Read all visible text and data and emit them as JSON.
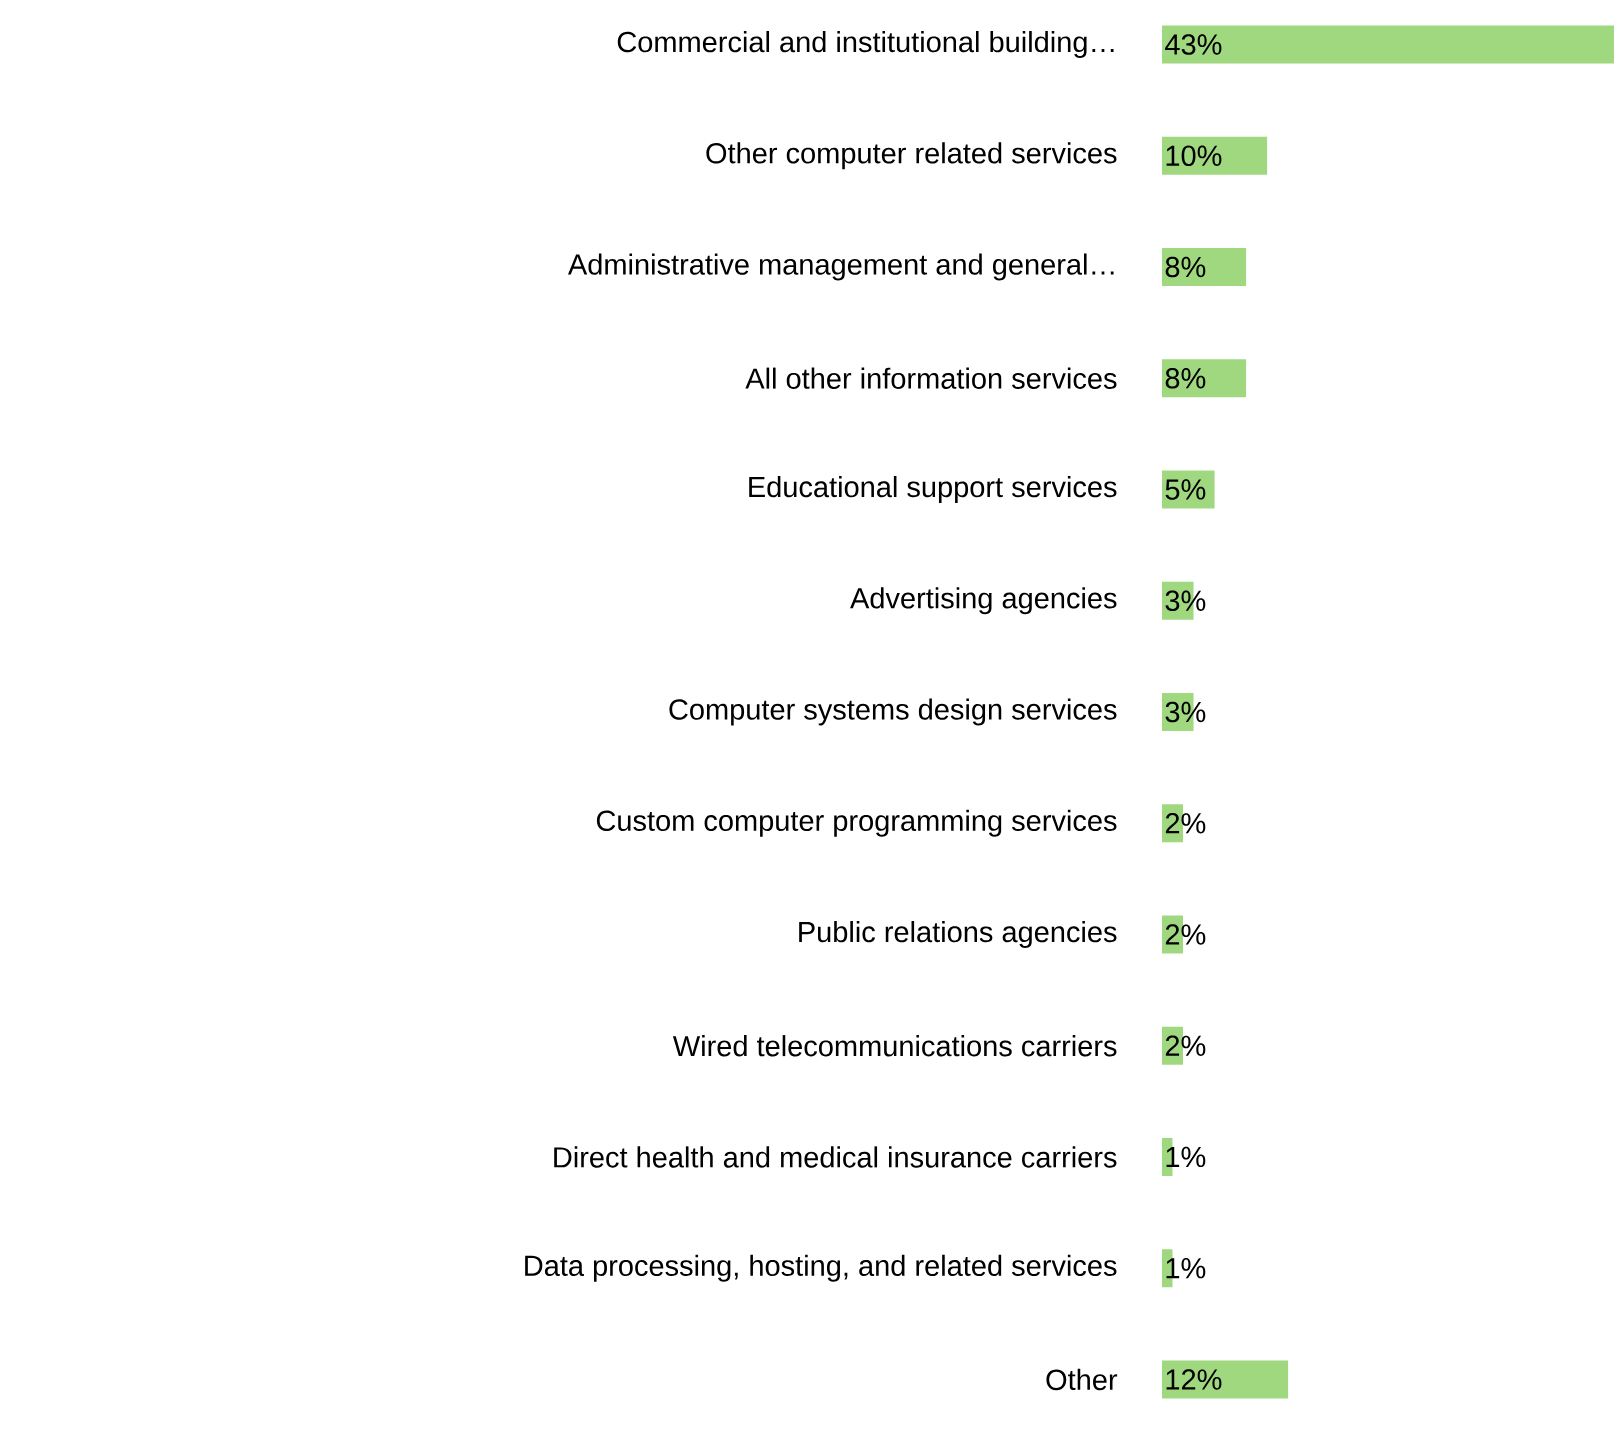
{
  "chart_data": {
    "type": "bar",
    "orientation": "horizontal",
    "categories": [
      "Commercial and institutional building…",
      "Other computer related services",
      "Administrative management and general…",
      "All other information services",
      "Educational support services",
      "Advertising agencies",
      "Computer systems design services",
      "Custom computer programming services",
      "Public relations agencies",
      "Wired telecommunications carriers",
      "Direct health and medical insurance carriers",
      "Data processing, hosting, and related services",
      "Other"
    ],
    "values": [
      43,
      10,
      8,
      8,
      5,
      3,
      3,
      2,
      2,
      2,
      1,
      1,
      12
    ],
    "value_labels": [
      "43%",
      "10%",
      "8%",
      "8%",
      "5%",
      "3%",
      "3%",
      "2%",
      "2%",
      "2%",
      "1%",
      "1%",
      "12%"
    ],
    "color": "#a0d880"
  }
}
